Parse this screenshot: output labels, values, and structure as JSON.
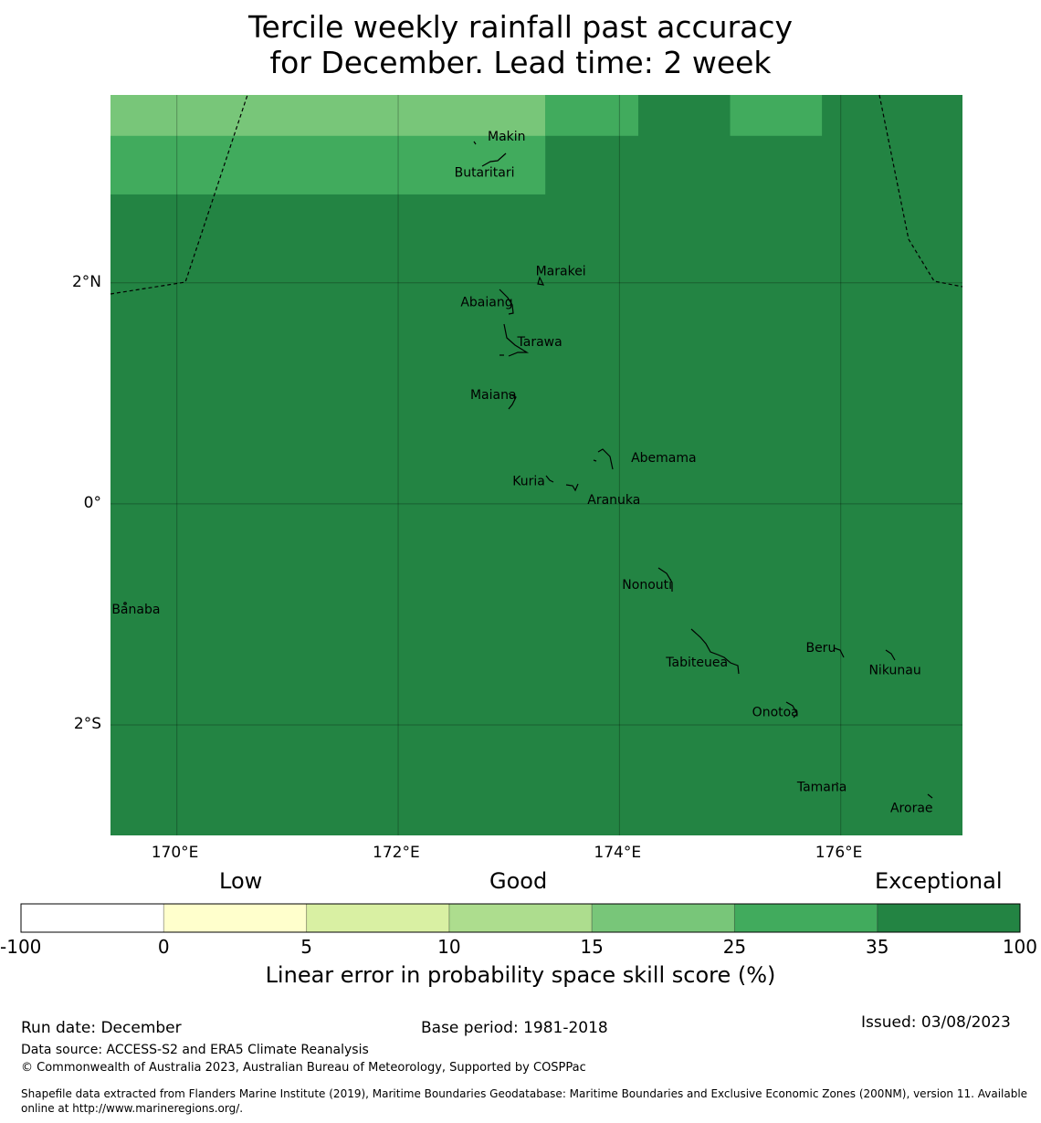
{
  "title": {
    "line1": "Tercile weekly rainfall past accuracy",
    "line2": "for December. Lead time: 2 week"
  },
  "map": {
    "lon_range": [
      169.4,
      177.1
    ],
    "lat_range": [
      -3.0,
      3.7
    ],
    "x_ticks": [
      {
        "lon": 170,
        "label": "170°E"
      },
      {
        "lon": 172,
        "label": "172°E"
      },
      {
        "lon": 174,
        "label": "174°E"
      },
      {
        "lon": 176,
        "label": "176°E"
      }
    ],
    "y_ticks": [
      {
        "lat": 2,
        "label": "2°N"
      },
      {
        "lat": 0,
        "label": "0°"
      },
      {
        "lat": -2,
        "label": "2°S"
      }
    ],
    "background_class_color": "#238443",
    "skill_cells": [
      {
        "lon0": 169.4,
        "lon1": 173.33,
        "lat0": 2.8,
        "lat1": 3.7,
        "color": "#41ab5d"
      },
      {
        "lon0": 169.4,
        "lon1": 173.33,
        "lat0": 3.33,
        "lat1": 3.7,
        "color": "#78c679"
      },
      {
        "lon0": 173.33,
        "lon1": 174.17,
        "lat0": 3.33,
        "lat1": 3.7,
        "color": "#41ab5d"
      },
      {
        "lon0": 175.0,
        "lon1": 175.83,
        "lat0": 3.33,
        "lat1": 3.7,
        "color": "#41ab5d"
      }
    ],
    "islands": [
      {
        "name": "Makin",
        "lon": 172.98,
        "lat": 3.33
      },
      {
        "name": "Butaritari",
        "lon": 172.78,
        "lat": 3.0
      },
      {
        "name": "Marakei",
        "lon": 173.47,
        "lat": 2.11
      },
      {
        "name": "Abaiang",
        "lon": 172.8,
        "lat": 1.83
      },
      {
        "name": "Tarawa",
        "lon": 173.28,
        "lat": 1.47
      },
      {
        "name": "Maiana",
        "lon": 172.86,
        "lat": 0.99
      },
      {
        "name": "Abemama",
        "lon": 174.4,
        "lat": 0.42
      },
      {
        "name": "Kuria",
        "lon": 173.18,
        "lat": 0.21
      },
      {
        "name": "Aranuka",
        "lon": 173.95,
        "lat": 0.04
      },
      {
        "name": "Nonouti",
        "lon": 174.25,
        "lat": -0.73
      },
      {
        "name": "Banaba",
        "lon": 169.63,
        "lat": -0.95
      },
      {
        "name": "Beru",
        "lon": 175.82,
        "lat": -1.3
      },
      {
        "name": "Tabiteuea",
        "lon": 174.7,
        "lat": -1.43
      },
      {
        "name": "Nikunau",
        "lon": 176.49,
        "lat": -1.5
      },
      {
        "name": "Onotoa",
        "lon": 175.41,
        "lat": -1.88
      },
      {
        "name": "Tamana",
        "lon": 175.83,
        "lat": -2.56
      },
      {
        "name": "Arorae",
        "lon": 176.64,
        "lat": -2.75
      }
    ]
  },
  "categories": {
    "low": "Low",
    "good": "Good",
    "exceptional": "Exceptional"
  },
  "colorbar": {
    "segments": [
      {
        "from": "-100",
        "to": "0",
        "color": "#ffffff"
      },
      {
        "from": "0",
        "to": "5",
        "color": "#ffffcc"
      },
      {
        "from": "5",
        "to": "10",
        "color": "#d9f0a3"
      },
      {
        "from": "10",
        "to": "15",
        "color": "#addd8e"
      },
      {
        "from": "15",
        "to": "25",
        "color": "#78c679"
      },
      {
        "from": "25",
        "to": "35",
        "color": "#41ab5d"
      },
      {
        "from": "35",
        "to": "100",
        "color": "#238443"
      }
    ],
    "ticks": [
      "-100",
      "0",
      "5",
      "10",
      "15",
      "25",
      "35",
      "100"
    ],
    "label": "Linear error in probability space skill score (%)"
  },
  "footer": {
    "run_date": "Run date: December",
    "base_period": "Base period: 1981-2018",
    "issued": "Issued: 03/08/2023",
    "data_source": "Data source: ACCESS-S2 and ERA5 Climate Reanalysis",
    "copyright": "© Commonwealth of Australia 2023, Australian Bureau of Meteorology, Supported by COSPPac",
    "shapefile_line1": "Shapefile data extracted from Flanders Marine Institute (2019), Maritime Boundaries Geodatabase: Maritime Boundaries and Exclusive Economic Zones (200NM), version 11. Available",
    "shapefile_line2": "online at http://www.marineregions.org/."
  }
}
